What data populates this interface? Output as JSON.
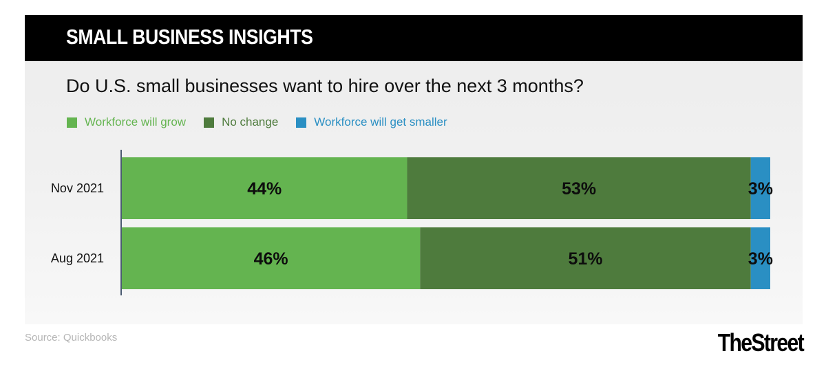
{
  "banner": {
    "title": "SMALL BUSINESS INSIGHTS"
  },
  "chart_data": {
    "type": "bar",
    "orientation": "horizontal",
    "stacked": true,
    "title": "Do U.S. small businesses want to hire over the next 3 months?",
    "categories": [
      "Nov 2021",
      "Aug 2021"
    ],
    "series": [
      {
        "name": "Workforce will grow",
        "values": [
          44,
          46
        ],
        "labels": [
          "44%",
          "46%"
        ],
        "color": "#64b450"
      },
      {
        "name": "No change",
        "values": [
          53,
          51
        ],
        "labels": [
          "53%",
          "51%"
        ],
        "color": "#4e7b3d"
      },
      {
        "name": "Workforce will get smaller",
        "values": [
          3,
          3
        ],
        "labels": [
          "3%",
          "3%"
        ],
        "color": "#2a8fc3"
      }
    ],
    "xlim": [
      0,
      100
    ],
    "grid": false,
    "legend_position": "top-left",
    "source": "Source: Quickbooks"
  },
  "brand": {
    "logo_text": "TheStreet"
  }
}
